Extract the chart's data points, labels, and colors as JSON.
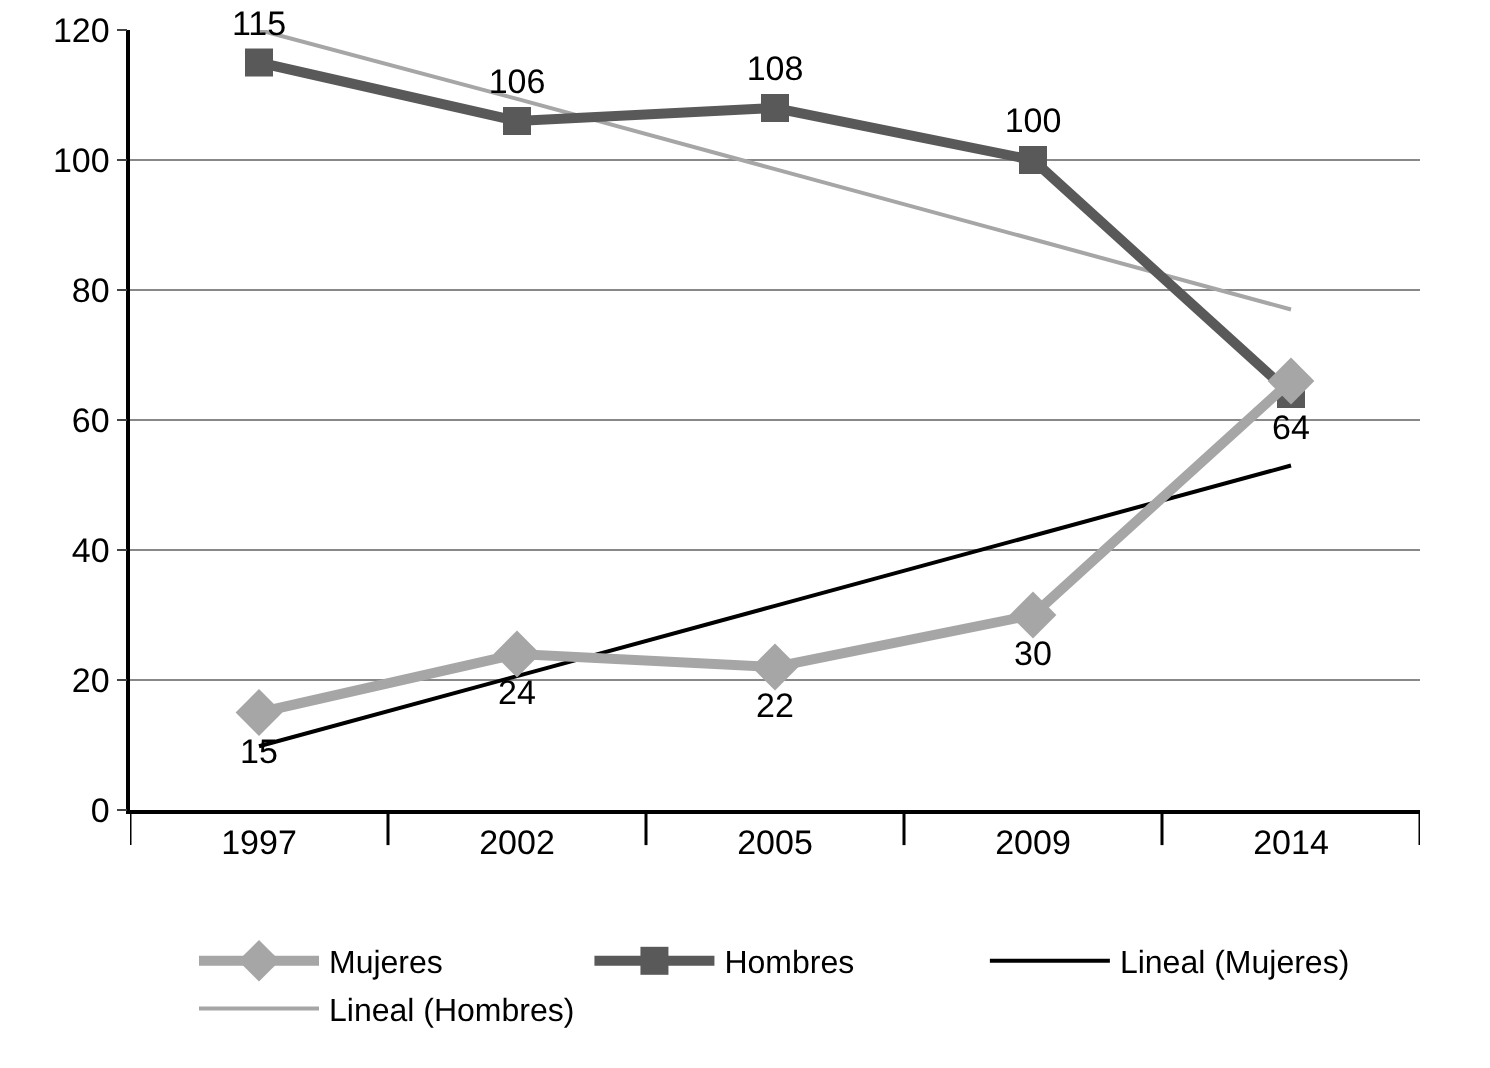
{
  "chart_data": {
    "type": "line",
    "categories": [
      "1997",
      "2002",
      "2005",
      "2009",
      "2014"
    ],
    "series": [
      {
        "name": "Mujeres",
        "color": "#a6a6a6",
        "marker": "diamond",
        "line_style": "solid",
        "values": [
          15,
          24,
          22,
          30,
          66
        ],
        "value_labels": [
          "15",
          "24",
          "22",
          "30",
          null
        ]
      },
      {
        "name": "Hombres",
        "color": "#595959",
        "marker": "square",
        "line_style": "solid",
        "values": [
          115,
          106,
          108,
          100,
          64
        ],
        "value_labels": [
          "115",
          "106",
          "108",
          "100",
          "64"
        ]
      },
      {
        "name": "Lineal (Mujeres)",
        "color": "#000000",
        "marker": "none",
        "line_style": "solid",
        "values": [
          9.8,
          20.6,
          31.4,
          42.2,
          53
        ]
      },
      {
        "name": "Lineal (Hombres)",
        "color": "#a6a6a6",
        "marker": "none",
        "line_style": "solid",
        "values": [
          120,
          109.4,
          98.6,
          87.8,
          77
        ]
      }
    ],
    "ylim": [
      0,
      120
    ],
    "yticks": [
      0,
      20,
      40,
      60,
      80,
      100,
      120
    ],
    "grid": "y",
    "legend": "bottom"
  }
}
